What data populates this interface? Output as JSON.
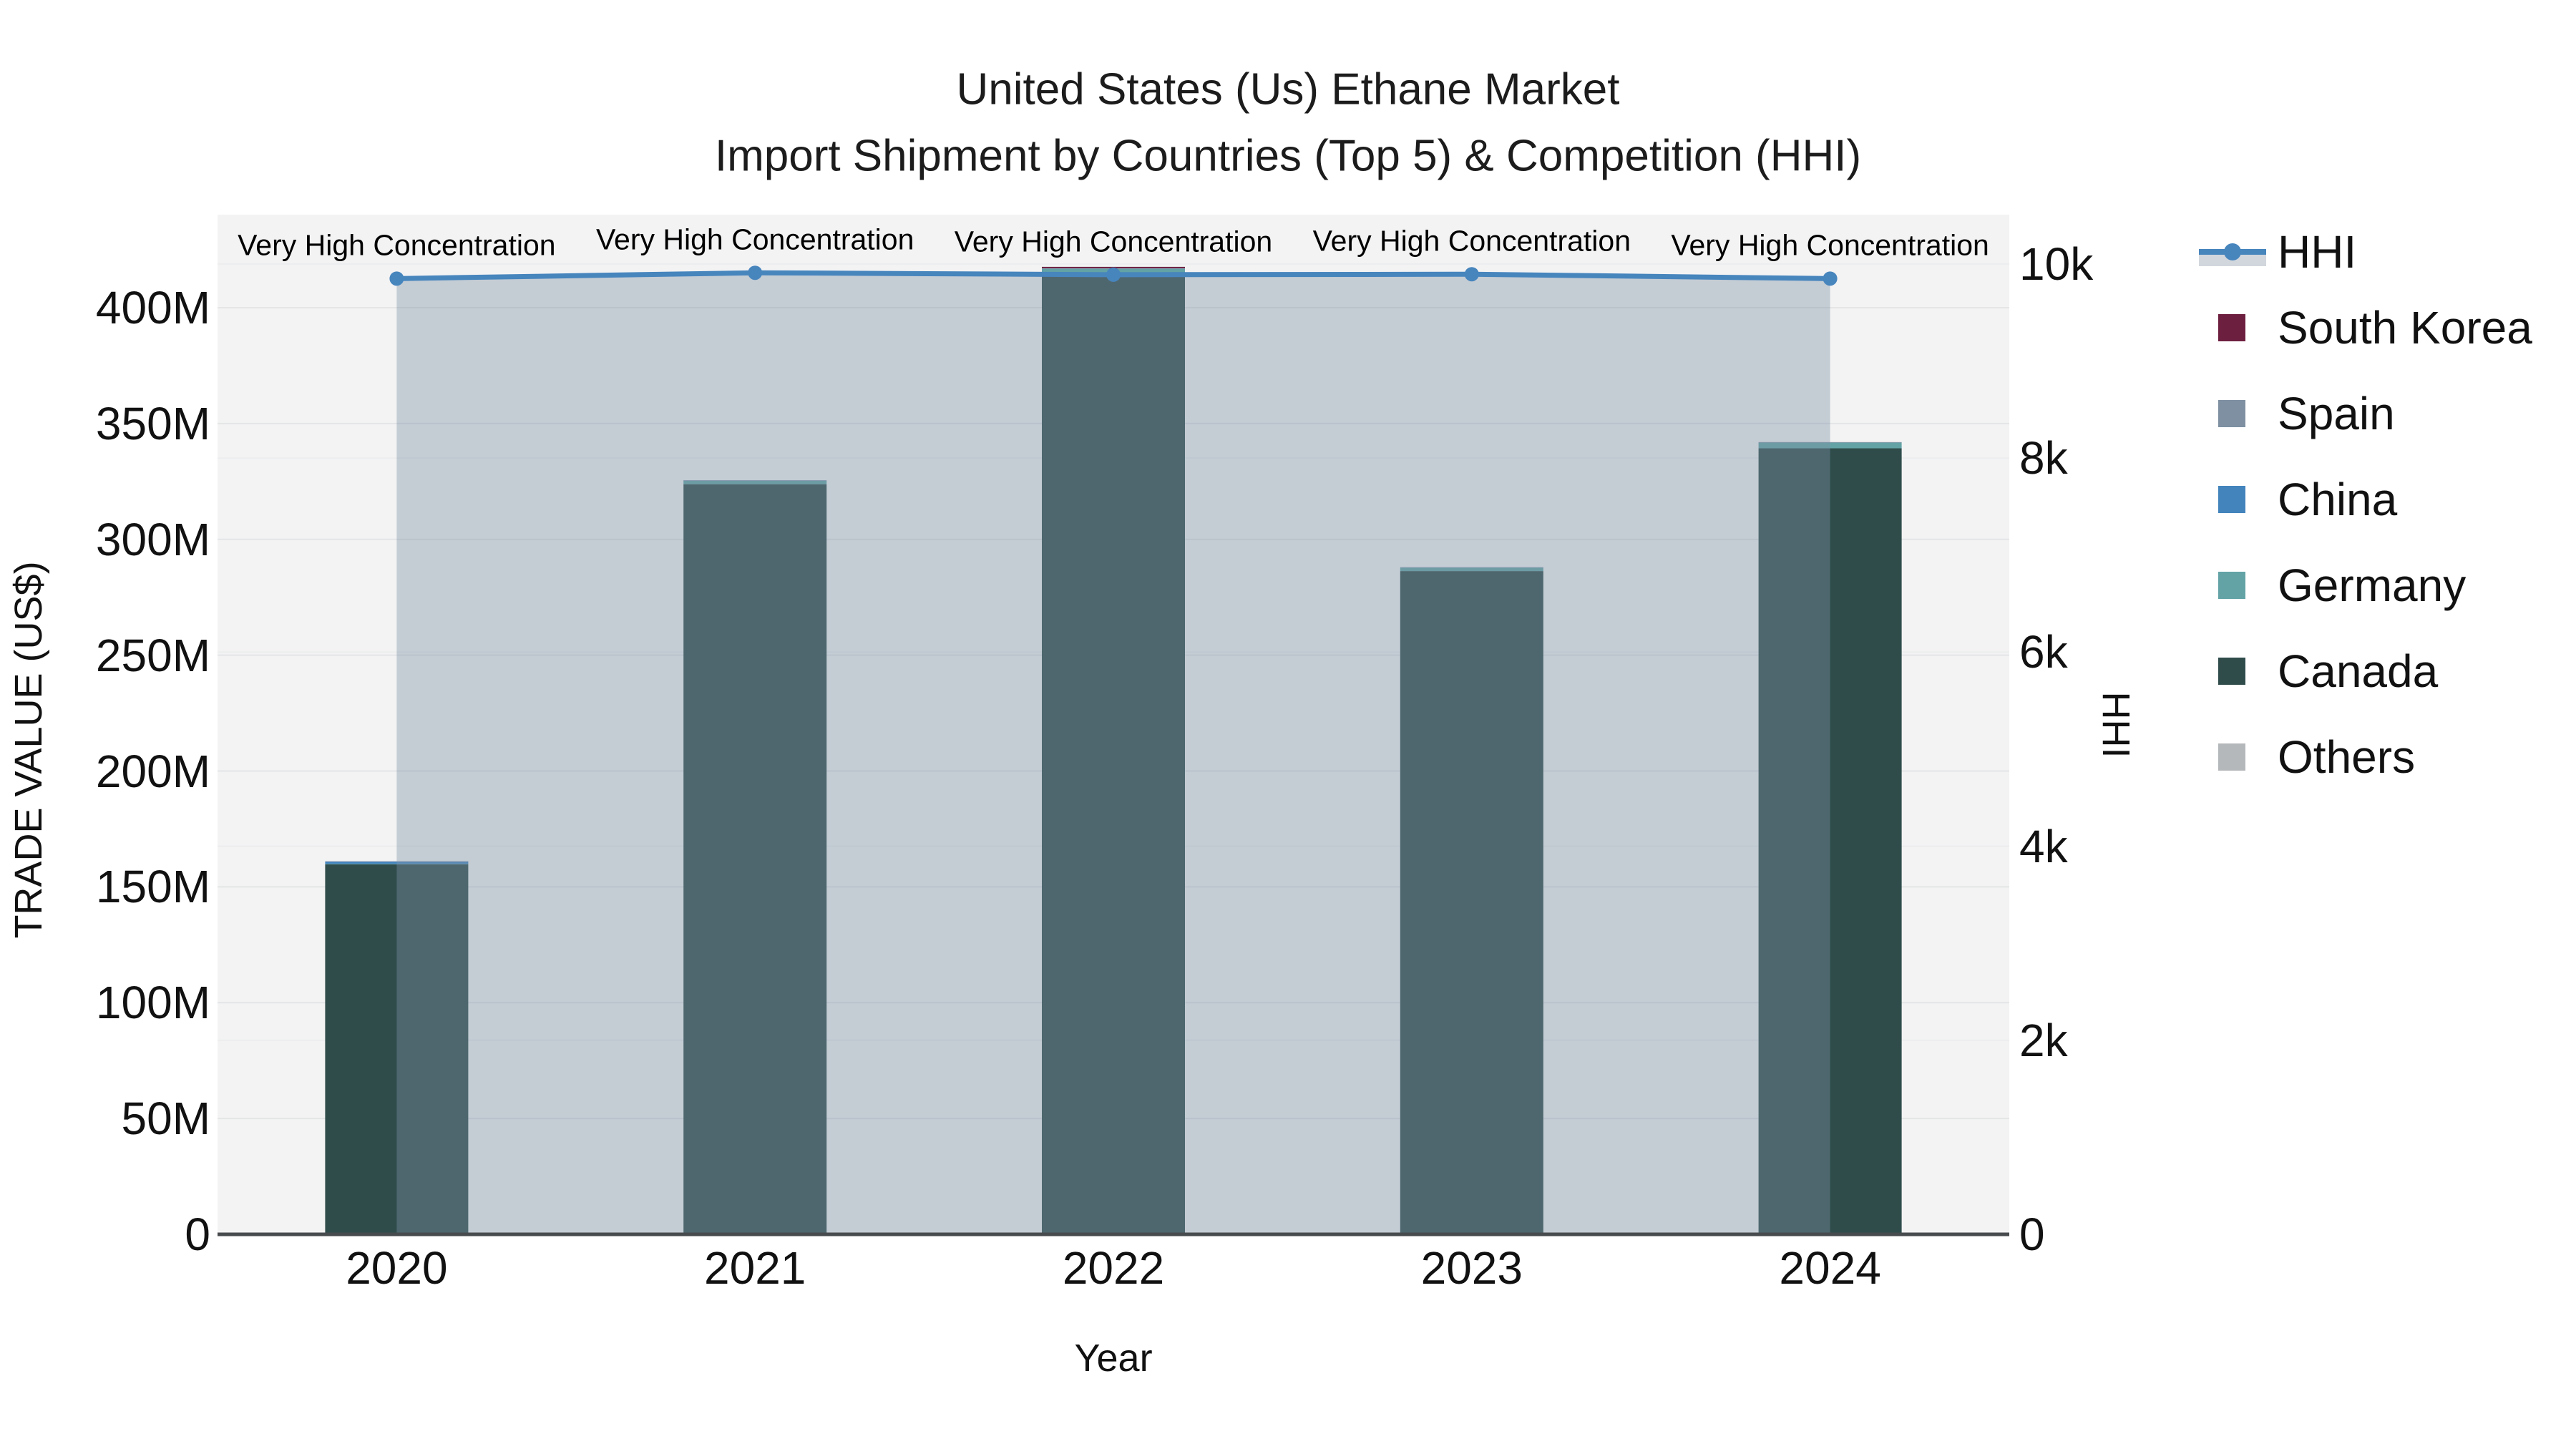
{
  "title": {
    "line1": "United States (Us) Ethane Market",
    "line2": "Import Shipment by Countries (Top 5) & Competition (HHI)"
  },
  "chart_data": {
    "type": "bar+line",
    "categories": [
      "2020",
      "2021",
      "2022",
      "2023",
      "2024"
    ],
    "x": {
      "title": "Year"
    },
    "y_left": {
      "title": "TRADE VALUE (US$)",
      "tick_values": [
        0,
        50,
        100,
        150,
        200,
        250,
        300,
        350,
        400
      ],
      "tick_labels": [
        "0",
        "50M",
        "100M",
        "150M",
        "200M",
        "250M",
        "300M",
        "350M",
        "400M"
      ],
      "unit": "million US$",
      "range": [
        0,
        440
      ]
    },
    "y_right": {
      "title": "HHI",
      "tick_values": [
        0,
        2000,
        4000,
        6000,
        8000,
        10000
      ],
      "tick_labels": [
        "0",
        "2k",
        "4k",
        "6k",
        "8k",
        "10k"
      ],
      "range": [
        0,
        10560
      ]
    },
    "series": [
      {
        "name": "South Korea",
        "color": "#6d1f40",
        "values": [
          0.05,
          0.05,
          0.6,
          0.05,
          0.05
        ]
      },
      {
        "name": "Spain",
        "color": "#7f90a2",
        "values": [
          0.05,
          0.05,
          0.1,
          0.05,
          0.05
        ]
      },
      {
        "name": "China",
        "color": "#4384bc",
        "values": [
          1.0,
          0.1,
          0.1,
          0.05,
          0.05
        ]
      },
      {
        "name": "Germany",
        "color": "#63a3a6",
        "values": [
          0.2,
          1.5,
          3.0,
          1.5,
          2.5
        ]
      },
      {
        "name": "Canada",
        "color": "#2f4c4b",
        "values": [
          159.7,
          323.8,
          413.8,
          286.3,
          339.3
        ]
      },
      {
        "name": "Others",
        "color": "#b5b8ba",
        "values": [
          0.05,
          0.05,
          0.1,
          0.05,
          0.05
        ]
      }
    ],
    "stack_order": [
      "Canada",
      "Germany",
      "China",
      "Spain",
      "South Korea",
      "Others"
    ],
    "bar_totals": [
      161.1,
      325.6,
      417.7,
      288.0,
      342.0
    ],
    "line_series": {
      "name": "HHI",
      "color": "#4785bd",
      "fill": "#7d91a5",
      "fill_opacity": 0.4,
      "values": [
        9850,
        9910,
        9890,
        9895,
        9850
      ]
    },
    "annotations": [
      {
        "text": "Very High Concentration",
        "x": "2020"
      },
      {
        "text": "Very High Concentration",
        "x": "2021"
      },
      {
        "text": "Very High Concentration",
        "x": "2022"
      },
      {
        "text": "Very High Concentration",
        "x": "2023"
      },
      {
        "text": "Very High Concentration",
        "x": "2024"
      }
    ],
    "legend": [
      {
        "label": "HHI",
        "type": "line"
      },
      {
        "label": "South Korea",
        "type": "box"
      },
      {
        "label": "Spain",
        "type": "box"
      },
      {
        "label": "China",
        "type": "box"
      },
      {
        "label": "Germany",
        "type": "box"
      },
      {
        "label": "Canada",
        "type": "box"
      },
      {
        "label": "Others",
        "type": "box"
      }
    ],
    "colors": {
      "plot_bg": "#f3f3f4",
      "grid_left": "#e3e5e6",
      "grid_right": "#ecedee",
      "axis_line": "#474b4d",
      "legend_band": "#d2d7dd",
      "text": "#111111"
    }
  }
}
